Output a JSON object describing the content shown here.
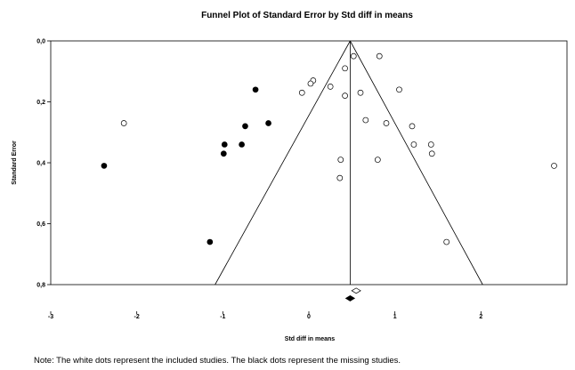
{
  "chart_data": {
    "type": "scatter",
    "title": "Funnel Plot of Standard Error by Std diff in means",
    "xlabel": "Std diff in means",
    "ylabel": "Standard Error",
    "xlim": [
      -3,
      3
    ],
    "ylim": [
      0.8,
      0.0
    ],
    "y_inverted": true,
    "xticks": [
      -3,
      -2,
      -1,
      0,
      1,
      2
    ],
    "xtick_labels": [
      "-3",
      "-2",
      "-1",
      "0",
      "1",
      "2"
    ],
    "yticks": [
      0.0,
      0.2,
      0.4,
      0.6,
      0.8
    ],
    "ytick_labels": [
      "0,0",
      "0,2",
      "0,4",
      "0,6",
      "0,8"
    ],
    "funnel": {
      "center": 0.48,
      "apex_se": 0.0,
      "base_se": 0.8,
      "left_x": -1.09,
      "right_x": 2.02
    },
    "summary_markers": [
      {
        "name": "observed",
        "x": 0.55,
        "y": 0.82,
        "fill": "white"
      },
      {
        "name": "adjusted",
        "x": 0.48,
        "y": 0.845,
        "fill": "black"
      }
    ],
    "series": [
      {
        "fill": "white",
        "points": [
          {
            "x": -2.15,
            "y": 0.27
          },
          {
            "x": 0.05,
            "y": 0.13
          },
          {
            "x": 0.02,
            "y": 0.14
          },
          {
            "x": -0.08,
            "y": 0.17
          },
          {
            "x": 0.25,
            "y": 0.15
          },
          {
            "x": 0.42,
            "y": 0.09
          },
          {
            "x": 0.52,
            "y": 0.05
          },
          {
            "x": 0.82,
            "y": 0.05
          },
          {
            "x": 0.6,
            "y": 0.17
          },
          {
            "x": 0.42,
            "y": 0.18
          },
          {
            "x": 1.05,
            "y": 0.16
          },
          {
            "x": 0.66,
            "y": 0.26
          },
          {
            "x": 0.9,
            "y": 0.27
          },
          {
            "x": 1.2,
            "y": 0.28
          },
          {
            "x": 1.22,
            "y": 0.34
          },
          {
            "x": 1.42,
            "y": 0.34
          },
          {
            "x": 1.43,
            "y": 0.37
          },
          {
            "x": 0.37,
            "y": 0.39
          },
          {
            "x": 0.8,
            "y": 0.39
          },
          {
            "x": 0.36,
            "y": 0.45
          },
          {
            "x": 1.6,
            "y": 0.66
          },
          {
            "x": 2.85,
            "y": 0.41
          }
        ]
      },
      {
        "fill": "black",
        "points": [
          {
            "x": -2.38,
            "y": 0.41
          },
          {
            "x": -0.62,
            "y": 0.16
          },
          {
            "x": -0.47,
            "y": 0.27
          },
          {
            "x": -0.74,
            "y": 0.28
          },
          {
            "x": -0.78,
            "y": 0.34
          },
          {
            "x": -0.98,
            "y": 0.34
          },
          {
            "x": -0.99,
            "y": 0.37
          },
          {
            "x": -1.15,
            "y": 0.66
          }
        ]
      }
    ]
  },
  "note": "Note: The white dots represent the included studies. The black dots represent the missing studies."
}
